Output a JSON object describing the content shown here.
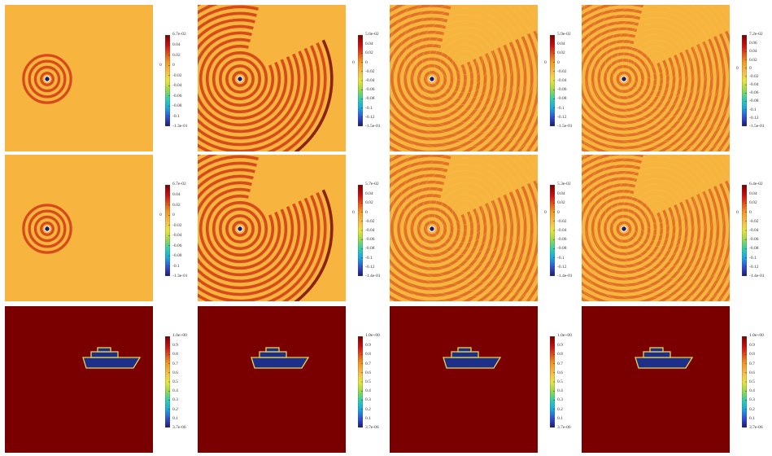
{
  "rows": [
    {
      "kind": "wave",
      "panels": [
        {
          "reach": 0.16,
          "gap": false,
          "ring_count": 4,
          "dense": false,
          "colorbar": {
            "max_label": "6.7e-02",
            "min_label": "-1.3e-01",
            "ticks": [
              "0.04",
              "0.02",
              "0",
              "-0.02",
              "-0.04",
              "-0.06",
              "-0.08",
              "-0.1"
            ],
            "zero_marker": "0"
          }
        },
        {
          "reach": 0.62,
          "gap": true,
          "ring_count": 14,
          "dense": false,
          "colorbar": {
            "max_label": "5.6e-02",
            "min_label": "-1.5e-01",
            "ticks": [
              "0.04",
              "0.02",
              "0",
              "-0.02",
              "-0.04",
              "-0.06",
              "-0.08",
              "-0.1",
              "-0.12"
            ],
            "zero_marker": "0"
          }
        },
        {
          "reach": 0.9,
          "gap": true,
          "ring_count": 20,
          "dense": true,
          "colorbar": {
            "max_label": "5.9e-02",
            "min_label": "-1.5e-01",
            "ticks": [
              "0.04",
              "0.02",
              "0",
              "-0.02",
              "-0.04",
              "-0.06",
              "-0.08",
              "-0.1",
              "-0.12"
            ],
            "zero_marker": "0"
          }
        },
        {
          "reach": 1.1,
          "gap": true,
          "ring_count": 26,
          "dense": true,
          "colorbar": {
            "max_label": "7.2e-02",
            "min_label": "-1.5e-01",
            "ticks": [
              "0.06",
              "0.04",
              "0.02",
              "0",
              "-0.02",
              "-0.04",
              "-0.06",
              "-0.08",
              "-0.1",
              "-0.12"
            ],
            "zero_marker": "0"
          }
        }
      ]
    },
    {
      "kind": "wave",
      "panels": [
        {
          "reach": 0.16,
          "gap": false,
          "ring_count": 4,
          "dense": false,
          "colorbar": {
            "max_label": "6.7e-02",
            "min_label": "-1.3e-01",
            "ticks": [
              "0.04",
              "0.02",
              "0",
              "-0.02",
              "-0.04",
              "-0.06",
              "-0.08",
              "-0.1"
            ],
            "zero_marker": "0"
          }
        },
        {
          "reach": 0.62,
          "gap": true,
          "ring_count": 14,
          "dense": false,
          "colorbar": {
            "max_label": "5.7e-02",
            "min_label": "-1.4e-01",
            "ticks": [
              "0.04",
              "0.02",
              "0",
              "-0.02",
              "-0.04",
              "-0.06",
              "-0.08",
              "-0.1",
              "-0.12"
            ],
            "zero_marker": "0"
          }
        },
        {
          "reach": 0.9,
          "gap": true,
          "ring_count": 20,
          "dense": true,
          "colorbar": {
            "max_label": "5.3e-02",
            "min_label": "-1.4e-01",
            "ticks": [
              "0.04",
              "0.02",
              "0",
              "-0.02",
              "-0.04",
              "-0.06",
              "-0.08",
              "-0.1",
              "-0.12"
            ],
            "zero_marker": "0"
          }
        },
        {
          "reach": 1.1,
          "gap": true,
          "ring_count": 26,
          "dense": true,
          "colorbar": {
            "max_label": "6.4e-02",
            "min_label": "-1.4e-01",
            "ticks": [
              "0.04",
              "0.02",
              "0",
              "-0.02",
              "-0.04",
              "-0.06",
              "-0.08",
              "-0.1",
              "-0.12"
            ],
            "zero_marker": "0"
          }
        }
      ]
    },
    {
      "kind": "ship",
      "panels": [
        {
          "colorbar": {
            "max_label": "1.0e+00",
            "min_label": "3.7e-06",
            "ticks": [
              "0.9",
              "0.8",
              "0.7",
              "0.6",
              "0.5",
              "0.4",
              "0.3",
              "0.2",
              "0.1"
            ]
          }
        },
        {
          "colorbar": {
            "max_label": "1.0e+00",
            "min_label": "3.7e-06",
            "ticks": [
              "0.9",
              "0.8",
              "0.7",
              "0.6",
              "0.5",
              "0.4",
              "0.3",
              "0.2",
              "0.1"
            ]
          }
        },
        {
          "colorbar": {
            "max_label": "1.0e+00",
            "min_label": "3.7e-06",
            "ticks": [
              "0.9",
              "0.8",
              "0.7",
              "0.6",
              "0.5",
              "0.4",
              "0.3",
              "0.2",
              "0.1"
            ]
          }
        },
        {
          "colorbar": {
            "max_label": "1.0e+00",
            "min_label": "3.7e-06",
            "ticks": [
              "0.9",
              "0.8",
              "0.7",
              "0.6",
              "0.5",
              "0.4",
              "0.3",
              "0.2",
              "0.1"
            ]
          }
        }
      ]
    }
  ],
  "colors": {
    "background_wave": "#f7b43f",
    "crest": "#d13814",
    "trough": "#7a0a0a",
    "ship_field": "#7a0000",
    "ship_fill": "#1e2f8a",
    "ship_edge": "#e8d64a"
  }
}
